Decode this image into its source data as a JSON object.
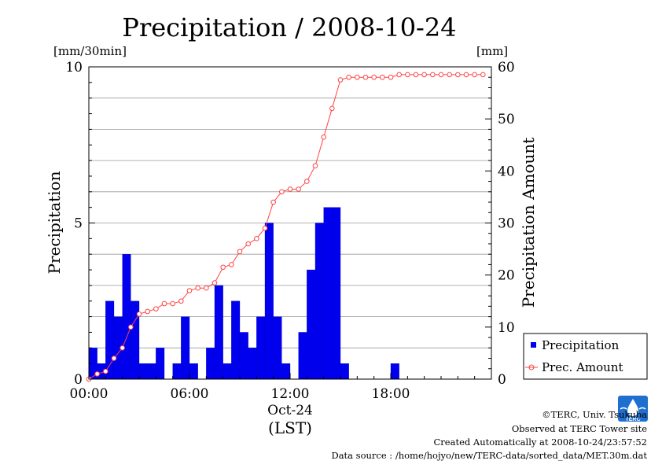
{
  "chart_data": {
    "type": "bar",
    "title": "Precipitation / 2008-10-24",
    "left_unit": "[mm/30min]",
    "right_unit": "[mm]",
    "ylabel": "Precipitation",
    "ylabel_right": "Precipitation Amount",
    "ylim": [
      0,
      10
    ],
    "ylim_right": [
      0,
      60
    ],
    "yticks": [
      "0",
      "5",
      "10"
    ],
    "yticks_right": [
      "0",
      "10",
      "20",
      "30",
      "40",
      "50",
      "60"
    ],
    "xlim_hours": [
      0,
      24
    ],
    "xticks": [
      "00:00",
      "06:00",
      "12:00",
      "18:00"
    ],
    "xlabel_date": "Oct-24",
    "xlabel": "(LST)",
    "grid": true,
    "legend_position": "bottom-right",
    "interval_hours": 0.5,
    "series": [
      {
        "name": "Precipitation",
        "kind": "bar",
        "color": "#0000ee",
        "values": [
          1,
          0.5,
          2.5,
          2,
          4,
          2.5,
          0.5,
          0.5,
          1,
          0,
          0.5,
          2,
          0.5,
          0,
          1,
          3,
          0.5,
          2.5,
          1.5,
          1,
          2,
          5,
          2,
          0.5,
          0,
          1.5,
          3.5,
          5,
          5.5,
          5.5,
          0.5,
          0,
          0,
          0,
          0,
          0,
          0.5,
          0,
          0,
          0,
          0,
          0,
          0,
          0,
          0,
          0,
          0,
          0
        ]
      },
      {
        "name": "Prec. Amount",
        "kind": "line",
        "color": "#ff4444",
        "values": [
          0,
          1,
          1.5,
          4,
          6,
          10,
          12.5,
          13,
          13.5,
          14.5,
          14.5,
          15,
          17,
          17.5,
          17.5,
          18.5,
          21.5,
          22,
          24.5,
          26,
          27,
          29,
          34,
          36,
          36.5,
          36.5,
          38,
          41,
          46.5,
          52,
          57.5,
          58,
          58,
          58,
          58,
          58,
          58,
          58.5,
          58.5,
          58.5,
          58.5,
          58.5,
          58.5,
          58.5,
          58.5,
          58.5,
          58.5,
          58.5
        ]
      }
    ]
  },
  "credits": {
    "copyright": "©TERC, Univ. Tsukuba",
    "site": "Observed at TERC Tower site",
    "created": "Created Automatically at 2008-10-24/23:57:52",
    "source": "Data source : /home/hojyo/new/TERC-data/sorted_data/MET.30m.dat",
    "logo_text": "TERC"
  }
}
